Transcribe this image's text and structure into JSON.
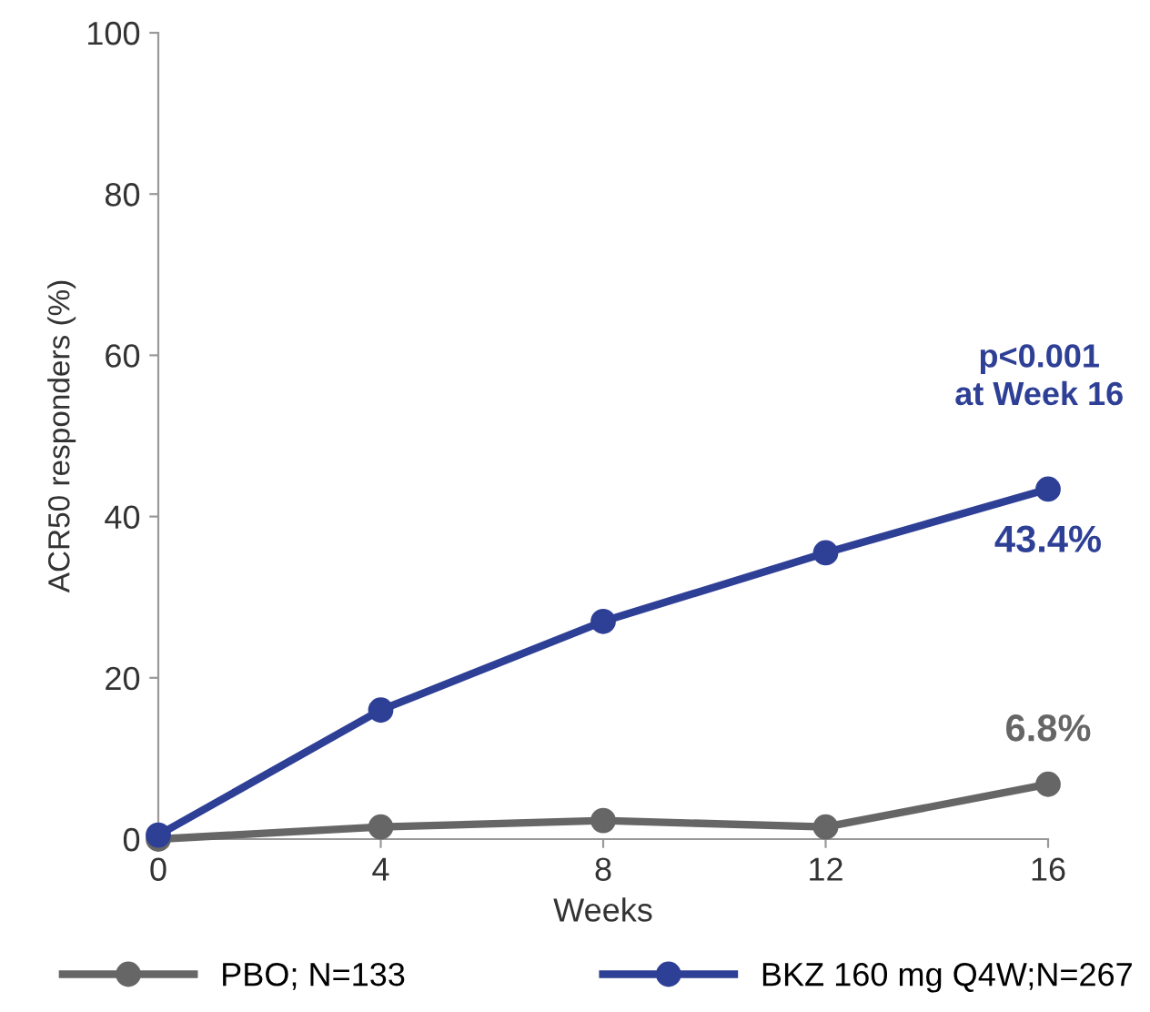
{
  "chart_data": {
    "type": "line",
    "xlabel": "Weeks",
    "ylabel": "ACR50 responders (%)",
    "x": [
      0,
      4,
      8,
      12,
      16
    ],
    "xlim": [
      0,
      16
    ],
    "xticks": [
      0,
      4,
      8,
      12,
      16
    ],
    "ylim": [
      0,
      100
    ],
    "yticks": [
      0,
      20,
      40,
      60,
      80,
      100
    ],
    "series": [
      {
        "name": "PBO; N=133",
        "color": "#666666",
        "values": [
          0,
          1.5,
          2.3,
          1.5,
          6.8
        ],
        "value_labels": [
          null,
          null,
          null,
          null,
          "6.8%"
        ]
      },
      {
        "name": "BKZ 160 mg Q4W;N=267",
        "color": "#2e3f96",
        "values": [
          0.5,
          16,
          27,
          35.5,
          43.4
        ],
        "value_labels": [
          null,
          null,
          null,
          null,
          "43.4%"
        ]
      }
    ],
    "annotations": [
      "p<0.001\nat Week 16"
    ],
    "marker": "circle",
    "line_style": "solid",
    "grid": false,
    "legend": "bottom"
  }
}
